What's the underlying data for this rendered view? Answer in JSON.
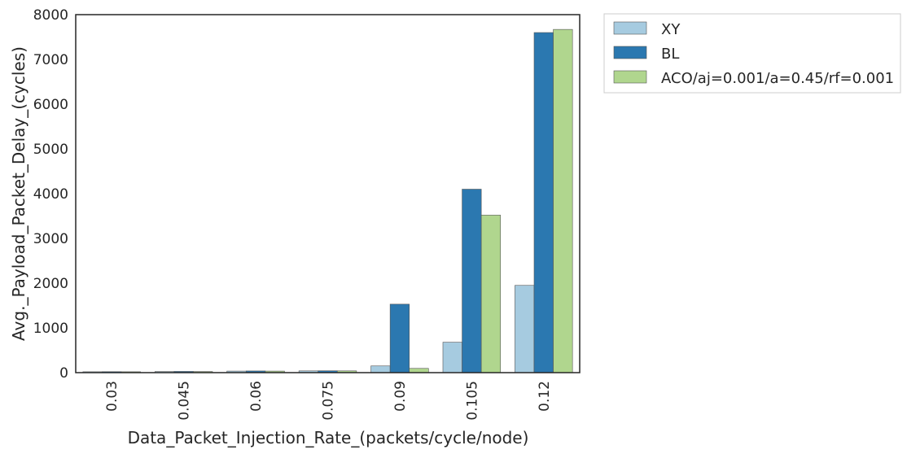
{
  "chart_data": {
    "type": "bar",
    "title": "",
    "xlabel": "Data_Packet_Injection_Rate_(packets/cycle/node)",
    "ylabel": "Avg._Payload_Packet_Delay_(cycles)",
    "categories": [
      "0.03",
      "0.045",
      "0.06",
      "0.075",
      "0.09",
      "0.105",
      "0.12"
    ],
    "ylim": [
      0,
      8000
    ],
    "yticks": [
      0,
      1000,
      2000,
      3000,
      4000,
      5000,
      6000,
      7000,
      8000
    ],
    "grid": false,
    "legend_position": "outside-top-right",
    "series": [
      {
        "name": "XY",
        "color": "#a6cbe0",
        "values": [
          20,
          25,
          35,
          40,
          150,
          680,
          1950
        ]
      },
      {
        "name": "BL",
        "color": "#2b78b0",
        "values": [
          22,
          28,
          38,
          42,
          1530,
          4100,
          7600
        ]
      },
      {
        "name": "ACO/aj=0.001/a=0.45/rf=0.001",
        "color": "#b0d68e",
        "values": [
          20,
          25,
          35,
          40,
          95,
          3520,
          7670
        ]
      }
    ]
  }
}
